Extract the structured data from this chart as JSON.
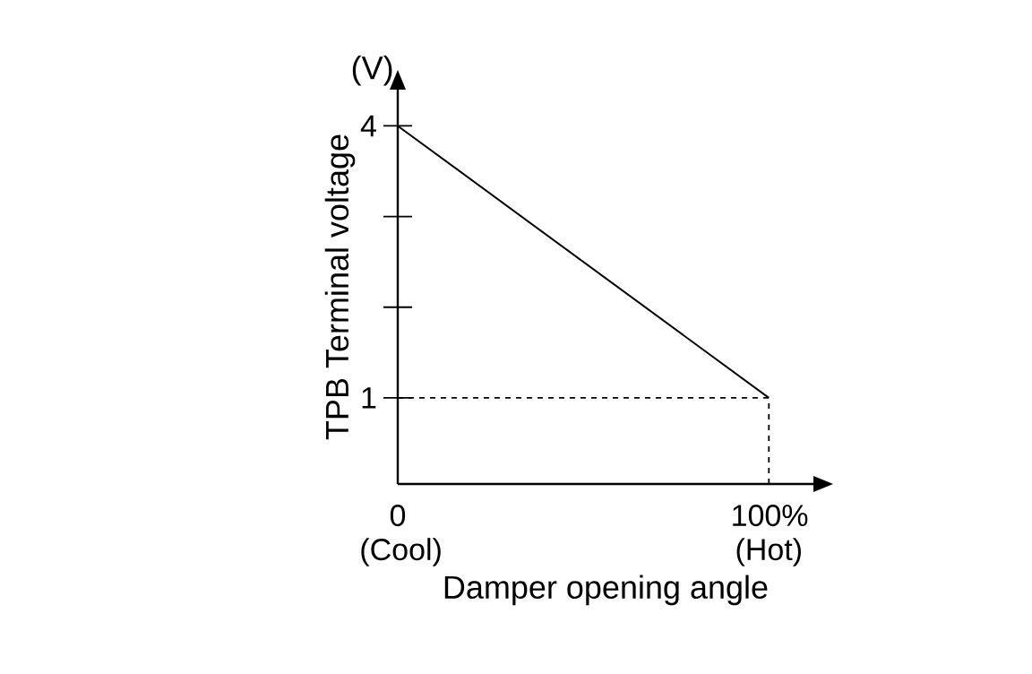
{
  "chart_data": {
    "type": "line",
    "xlabel": "Damper opening angle",
    "ylabel": "TPB Terminal voltage",
    "annotations": [
      "(V)"
    ],
    "x": [
      0,
      100
    ],
    "values": [
      4,
      1
    ],
    "color": "#000000",
    "marker": "none",
    "line_style": "solid",
    "grid": false,
    "xlim": [
      0,
      112
    ],
    "ylim": [
      0.05,
      4.4
    ],
    "xticks": [
      {
        "value": 0,
        "label": "0 (Cool)"
      },
      {
        "value": 100,
        "label": "100% (Hot)"
      }
    ],
    "yticks": [
      1,
      {
        "value": 2,
        "label": null
      },
      {
        "value": 3,
        "label": null
      },
      4
    ],
    "ref_lines": [
      {
        "axis": "y",
        "value": 1,
        "line_style": "dashed"
      },
      {
        "axis": "x",
        "value": 100,
        "line_style": "dashed"
      }
    ]
  }
}
